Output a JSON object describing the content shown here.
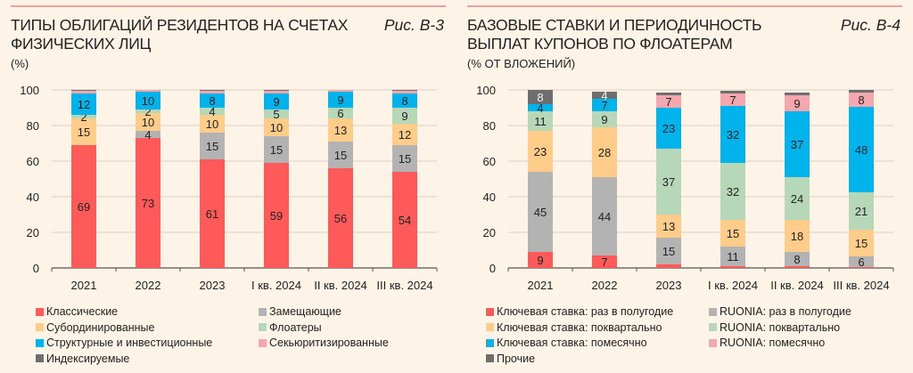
{
  "chart_data": [
    {
      "type": "bar",
      "stacked": true,
      "id": "B-3",
      "title": "ТИПЫ ОБЛИГАЦИЙ РЕЗИДЕНТОВ НА СЧЕТАХ ФИЗИЧЕСКИХ ЛИЦ",
      "figure_label": "Рис. В-3",
      "unit_label": "(%)",
      "xlabel": "",
      "ylabel": "%",
      "ylim": [
        0,
        100
      ],
      "yticks": [
        0,
        20,
        40,
        60,
        80,
        100
      ],
      "grid": true,
      "legend_position": "bottom",
      "categories": [
        "2021",
        "2022",
        "2023",
        "I кв. 2024",
        "II кв. 2024",
        "III кв. 2024"
      ],
      "series": [
        {
          "name": "Классические",
          "color": "#ff5a5a",
          "values": [
            69,
            73,
            61,
            59,
            56,
            54
          ],
          "labels": [
            "69",
            "73",
            "61",
            "59",
            "56",
            "54"
          ]
        },
        {
          "name": "Замещающие",
          "color": "#b3b3b3",
          "values": [
            0,
            4,
            15,
            15,
            15,
            15
          ],
          "labels": [
            "",
            "4",
            "15",
            "15",
            "15",
            "15"
          ]
        },
        {
          "name": "Субординированные",
          "color": "#ffcc8a",
          "values": [
            15,
            10,
            10,
            10,
            13,
            12
          ],
          "labels": [
            "15",
            "10",
            "10",
            "10",
            "13",
            "12"
          ]
        },
        {
          "name": "Флоатеры",
          "color": "#b7d7b9",
          "values": [
            2,
            2,
            4,
            5,
            6,
            9
          ],
          "labels": [
            "2",
            "2",
            "4",
            "5",
            "6",
            "9"
          ]
        },
        {
          "name": "Структурные и инвестиционные",
          "color": "#00b4eb",
          "values": [
            12,
            10,
            8,
            9,
            9,
            8
          ],
          "labels": [
            "12",
            "10",
            "8",
            "9",
            "9",
            "8"
          ]
        },
        {
          "name": "Секьюритизированные",
          "color": "#f5a7ae",
          "values": [
            1.5,
            1,
            1.5,
            1.5,
            1,
            1.5
          ],
          "labels": [
            "",
            "",
            "",
            "",
            "",
            ""
          ]
        },
        {
          "name": "Индексируемые",
          "color": "#6e6e6e",
          "values": [
            0.5,
            0,
            0.5,
            0.5,
            0,
            0.5
          ],
          "labels": [
            "",
            "",
            "",
            "",
            "",
            ""
          ]
        }
      ],
      "legend_layout": [
        [
          "Классические",
          "Замещающие"
        ],
        [
          "Субординированные",
          "Флоатеры"
        ],
        [
          "Структурные и инвестиционные",
          "Секьюритизированные"
        ],
        [
          "Индексируемые"
        ]
      ]
    },
    {
      "type": "bar",
      "stacked": true,
      "id": "B-4",
      "title": "БАЗОВЫЕ СТАВКИ И ПЕРИОДИЧНОСТЬ ВЫПЛАТ КУПОНОВ ПО ФЛОАТЕРАМ",
      "figure_label": "Рис. В-4",
      "unit_label": "(% ОТ ВЛОЖЕНИЙ)",
      "xlabel": "",
      "ylabel": "% от вложений",
      "ylim": [
        0,
        100
      ],
      "yticks": [
        0,
        20,
        40,
        60,
        80,
        100
      ],
      "grid": true,
      "legend_position": "bottom",
      "categories": [
        "2021",
        "2022",
        "2023",
        "I кв. 2024",
        "II кв. 2024",
        "III кв. 2024"
      ],
      "series": [
        {
          "name": "Ключевая ставка: раз в полугодие",
          "color": "#ff5a5a",
          "values": [
            9,
            7,
            2,
            1,
            1,
            0.5
          ],
          "labels": [
            "9",
            "7",
            "",
            "",
            "",
            ""
          ]
        },
        {
          "name": "RUONIA: раз в полугодие",
          "color": "#b3b3b3",
          "values": [
            45,
            44,
            15,
            11,
            8,
            6
          ],
          "labels": [
            "45",
            "44",
            "15",
            "11",
            "8",
            "6"
          ]
        },
        {
          "name": "Ключевая ставка: поквартально",
          "color": "#ffcc8a",
          "values": [
            23,
            28,
            13,
            15,
            18,
            15
          ],
          "labels": [
            "23",
            "28",
            "13",
            "15",
            "18",
            "15"
          ]
        },
        {
          "name": "RUONIA: поквартально",
          "color": "#b7d7b9",
          "values": [
            11,
            9,
            37,
            32,
            24,
            21
          ],
          "labels": [
            "11",
            "9",
            "37",
            "32",
            "24",
            "21"
          ]
        },
        {
          "name": "Ключевая ставка: помесячно",
          "color": "#00b4eb",
          "values": [
            4,
            7,
            23,
            32,
            37,
            48
          ],
          "labels": [
            "4",
            "7",
            "23",
            "32",
            "37",
            "48"
          ]
        },
        {
          "name": "RUONIA: помесячно",
          "color": "#f5a7ae",
          "values": [
            0,
            0,
            7,
            7,
            9,
            8
          ],
          "labels": [
            "",
            "",
            "7",
            "7",
            "9",
            "8"
          ]
        },
        {
          "name": "Прочие",
          "color": "#6e6e6e",
          "values": [
            8,
            4,
            1.5,
            1.5,
            1.5,
            1.5
          ],
          "labels": [
            "8",
            "4",
            "",
            "",
            "",
            ""
          ]
        }
      ],
      "legend_layout": [
        [
          "Ключевая ставка: раз в полугодие",
          "RUONIA: раз в полугодие"
        ],
        [
          "Ключевая ставка: поквартально",
          "RUONIA: поквартально"
        ],
        [
          "Ключевая ставка: помесячно",
          "RUONIA: помесячно"
        ],
        [
          "Прочие"
        ]
      ]
    }
  ]
}
